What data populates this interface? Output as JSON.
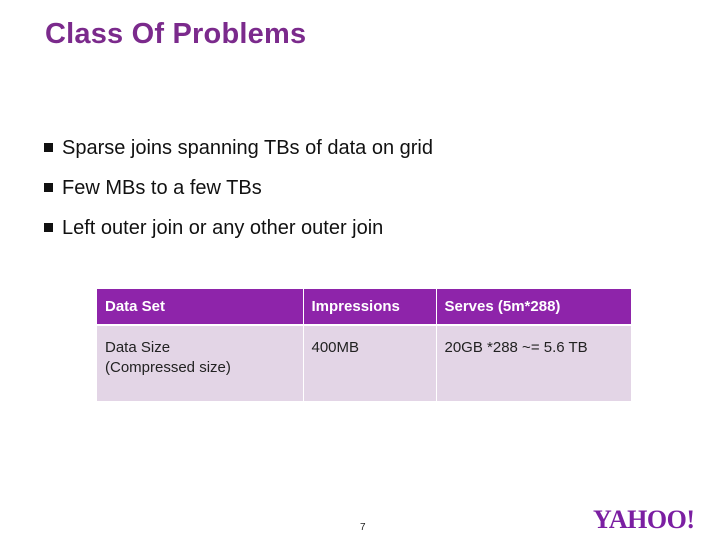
{
  "slide": {
    "title": "Class Of Problems",
    "page_number": "7"
  },
  "bullets": [
    "Sparse joins spanning TBs of data on grid",
    "Few MBs to a few TBs",
    "Left outer join or any other outer join"
  ],
  "table": {
    "headers": [
      "Data Set",
      "Impressions",
      "Serves (5m*288)"
    ],
    "rows": [
      [
        "Data Size\n(Compressed size)",
        " 400MB",
        "20GB *288 ~= 5.6 TB"
      ]
    ]
  },
  "logo": {
    "text": "YAHOO!",
    "color": "#7b1fa2"
  },
  "colors": {
    "title": "#7b2a8c",
    "header_bg": "#8e24aa",
    "cell_bg": "#e3d5e6"
  }
}
